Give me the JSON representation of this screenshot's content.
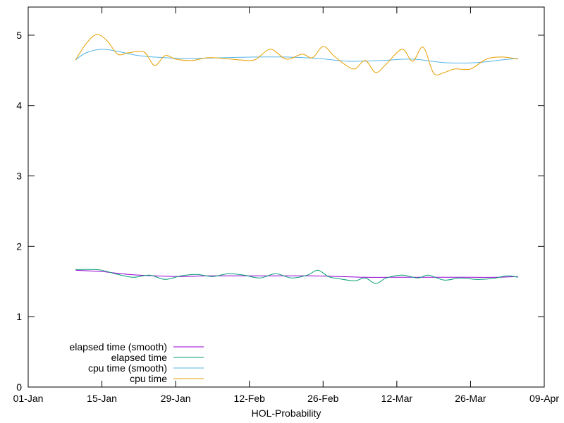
{
  "chart_data": {
    "type": "line",
    "xlabel": "HOL-Probability",
    "ylabel": "",
    "title": "",
    "xlim": [
      "2022-01-01",
      "2022-04-09"
    ],
    "ylim": [
      0,
      5.4
    ],
    "x_ticks": [
      "01-Jan",
      "15-Jan",
      "29-Jan",
      "12-Feb",
      "26-Feb",
      "12-Mar",
      "26-Mar",
      "09-Apr"
    ],
    "y_ticks": [
      "0",
      "1",
      "2",
      "3",
      "4",
      "5"
    ],
    "y_tick_values": [
      0,
      1,
      2,
      3,
      4,
      5
    ],
    "legend_position": "bottom-left",
    "grid": false,
    "series": [
      {
        "name": "elapsed time (smooth)",
        "color": "#9400d3",
        "x": [
          "2022-01-10",
          "2022-01-15",
          "2022-01-20",
          "2022-01-25",
          "2022-01-30",
          "2022-02-04",
          "2022-02-09",
          "2022-02-14",
          "2022-02-19",
          "2022-02-24",
          "2022-03-01",
          "2022-03-06",
          "2022-03-11",
          "2022-03-16",
          "2022-03-21",
          "2022-03-26",
          "2022-03-31",
          "2022-04-04"
        ],
        "values": [
          1.66,
          1.64,
          1.6,
          1.58,
          1.57,
          1.58,
          1.58,
          1.58,
          1.58,
          1.58,
          1.57,
          1.56,
          1.56,
          1.56,
          1.56,
          1.56,
          1.56,
          1.57
        ]
      },
      {
        "name": "elapsed time",
        "color": "#009e73",
        "x": [
          "2022-01-10",
          "2022-01-13",
          "2022-01-15",
          "2022-01-18",
          "2022-01-21",
          "2022-01-24",
          "2022-01-27",
          "2022-01-30",
          "2022-02-02",
          "2022-02-05",
          "2022-02-08",
          "2022-02-11",
          "2022-02-14",
          "2022-02-17",
          "2022-02-20",
          "2022-02-23",
          "2022-02-25",
          "2022-02-27",
          "2022-03-01",
          "2022-03-04",
          "2022-03-06",
          "2022-03-08",
          "2022-03-10",
          "2022-03-13",
          "2022-03-16",
          "2022-03-18",
          "2022-03-21",
          "2022-03-24",
          "2022-03-27",
          "2022-03-30",
          "2022-04-02",
          "2022-04-04"
        ],
        "values": [
          1.67,
          1.67,
          1.66,
          1.6,
          1.56,
          1.59,
          1.53,
          1.58,
          1.6,
          1.57,
          1.61,
          1.59,
          1.55,
          1.61,
          1.55,
          1.59,
          1.66,
          1.57,
          1.54,
          1.51,
          1.55,
          1.47,
          1.55,
          1.59,
          1.55,
          1.59,
          1.52,
          1.55,
          1.53,
          1.54,
          1.58,
          1.56
        ]
      },
      {
        "name": "cpu time (smooth)",
        "color": "#56b4e9",
        "x": [
          "2022-01-10",
          "2022-01-12",
          "2022-01-15",
          "2022-01-18",
          "2022-01-22",
          "2022-01-27",
          "2022-02-01",
          "2022-02-07",
          "2022-02-13",
          "2022-02-19",
          "2022-02-25",
          "2022-03-03",
          "2022-03-09",
          "2022-03-15",
          "2022-03-21",
          "2022-03-27",
          "2022-04-01",
          "2022-04-04"
        ],
        "values": [
          4.65,
          4.75,
          4.8,
          4.77,
          4.71,
          4.68,
          4.67,
          4.68,
          4.69,
          4.69,
          4.67,
          4.63,
          4.64,
          4.66,
          4.61,
          4.61,
          4.65,
          4.67
        ]
      },
      {
        "name": "cpu time",
        "color": "#e69f00",
        "x": [
          "2022-01-10",
          "2022-01-12",
          "2022-01-14",
          "2022-01-16",
          "2022-01-18",
          "2022-01-20",
          "2022-01-23",
          "2022-01-25",
          "2022-01-27",
          "2022-01-29",
          "2022-02-01",
          "2022-02-04",
          "2022-02-07",
          "2022-02-10",
          "2022-02-13",
          "2022-02-16",
          "2022-02-19",
          "2022-02-22",
          "2022-02-24",
          "2022-02-26",
          "2022-02-28",
          "2022-03-02",
          "2022-03-04",
          "2022-03-06",
          "2022-03-08",
          "2022-03-10",
          "2022-03-13",
          "2022-03-15",
          "2022-03-17",
          "2022-03-19",
          "2022-03-21",
          "2022-03-23",
          "2022-03-26",
          "2022-03-29",
          "2022-04-01",
          "2022-04-04"
        ],
        "values": [
          4.65,
          4.88,
          5.01,
          4.92,
          4.73,
          4.75,
          4.76,
          4.57,
          4.71,
          4.66,
          4.64,
          4.68,
          4.67,
          4.65,
          4.65,
          4.8,
          4.66,
          4.73,
          4.68,
          4.84,
          4.71,
          4.59,
          4.52,
          4.64,
          4.47,
          4.59,
          4.8,
          4.63,
          4.83,
          4.46,
          4.47,
          4.52,
          4.52,
          4.66,
          4.69,
          4.66
        ]
      }
    ]
  }
}
